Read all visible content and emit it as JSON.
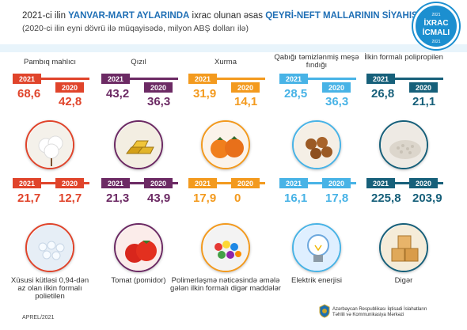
{
  "header": {
    "title_pre": "2021-ci ilin ",
    "title_period": "YANVAR-MART AYLARINDA",
    "title_mid": " ixrac olunan əsas ",
    "title_main": "QEYRİ-NEFT MALLARININ SİYAHISI",
    "subtitle": "(2020-ci ilin eyni dövrü ilə müqayisədə, milyon ABŞ dolları ilə)"
  },
  "badge": {
    "year_top": "2021",
    "line1": "İXRAC",
    "line2": "İCMALI",
    "year_bottom": "2021"
  },
  "colors": {
    "red": "#e0442b",
    "purple": "#6c2a64",
    "orange": "#f39a1e",
    "lightblue": "#48b3e6",
    "teal": "#17607a"
  },
  "chart_data": {
    "type": "table",
    "title": "2021-ci ilin YANVAR-MART AYLARINDA ixrac olunan əsas QEYRİ-NEFT MALLARININ SİYAHISI",
    "subtitle": "(2020-ci ilin eyni dövrü ilə müqayisədə, milyon ABŞ dolları ilə)",
    "columns": [
      "2021",
      "2020"
    ],
    "items": [
      {
        "name": "Pambıq mahlıcı",
        "v2021": "68,6",
        "v2020": "42,8"
      },
      {
        "name": "Qızıl",
        "v2021": "43,2",
        "v2020": "36,3"
      },
      {
        "name": "Xurma",
        "v2021": "31,9",
        "v2020": "14,1"
      },
      {
        "name": "Qabığı təmizlənmiş meşə fındığı",
        "v2021": "28,5",
        "v2020": "36,3"
      },
      {
        "name": "İlkin formalı polipropilen",
        "v2021": "26,8",
        "v2020": "21,1"
      },
      {
        "name": "Xüsusi kütləsi 0,94-dən az olan ilkin formalı polietilen",
        "v2021": "21,7",
        "v2020": "12,7"
      },
      {
        "name": "Tomat (pomidor)",
        "v2021": "21,3",
        "v2020": "43,9"
      },
      {
        "name": "Polimerləşmə nəticəsində əmələ gələn ilkin formalı digər maddələr",
        "v2021": "17,9",
        "v2020": "0"
      },
      {
        "name": "Elektrik enerjisi",
        "v2021": "16,1",
        "v2020": "17,8"
      },
      {
        "name": "Digər",
        "v2021": "225,8",
        "v2020": "203,9"
      }
    ]
  },
  "footer": {
    "date": "APREL/2021",
    "org_line1": "Azərbaycan Respublikası İqtisadi İslahatların",
    "org_line2": "Təhlili və Kommunikasiya Mərkəzi"
  }
}
